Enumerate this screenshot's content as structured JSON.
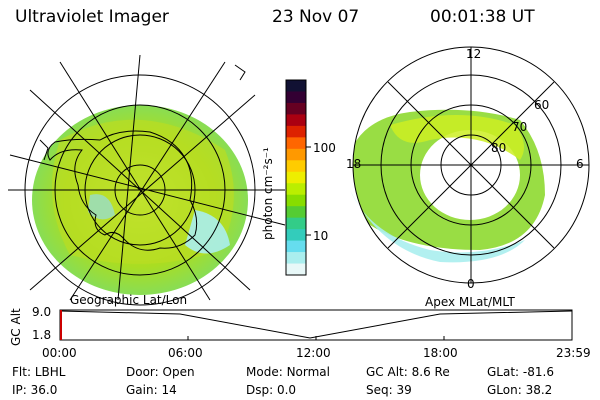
{
  "header": {
    "instrument": "Ultraviolet Imager",
    "date": "23 Nov 07",
    "time": "00:01:38 UT"
  },
  "left_map": {
    "caption": "Geographic Lat/Lon"
  },
  "right_map": {
    "caption": "Apex MLat/MLT",
    "mlt_labels": {
      "top": "12",
      "left": "18",
      "right": "6",
      "bottom": "0"
    },
    "lat_labels": [
      "60",
      "70",
      "80"
    ]
  },
  "colorbar": {
    "unit_label": "photon cm⁻²s⁻¹",
    "ticks": [
      "100",
      "10"
    ],
    "colors": [
      "#111133",
      "#330033",
      "#660022",
      "#aa0011",
      "#dd2200",
      "#ff6600",
      "#ff9900",
      "#ffcc00",
      "#eeee00",
      "#bbee00",
      "#88dd00",
      "#55cc33",
      "#33cc88",
      "#33ccbb",
      "#66ddee",
      "#aaeeee",
      "#e8f8f8"
    ]
  },
  "altitude_plot": {
    "ylabel": "GC Alt",
    "yticks": [
      "9.0",
      "1.8"
    ],
    "xticks": [
      "00:00",
      "06:00",
      "12:00",
      "18:00",
      "23:59"
    ]
  },
  "info": {
    "row1": [
      {
        "label": "Flt:",
        "value": "LBHL"
      },
      {
        "label": "Door:",
        "value": "Open"
      },
      {
        "label": "Mode:",
        "value": "Normal"
      },
      {
        "label": "GC Alt:",
        "value": "8.6 Re"
      },
      {
        "label": "GLat:",
        "value": "-81.6"
      }
    ],
    "row2": [
      {
        "label": "IP:",
        "value": "36.0"
      },
      {
        "label": "Gain:",
        "value": "14"
      },
      {
        "label": "Dsp:",
        "value": "0.0"
      },
      {
        "label": "Seq:",
        "value": "39"
      },
      {
        "label": "GLon:",
        "value": "38.2"
      }
    ]
  }
}
